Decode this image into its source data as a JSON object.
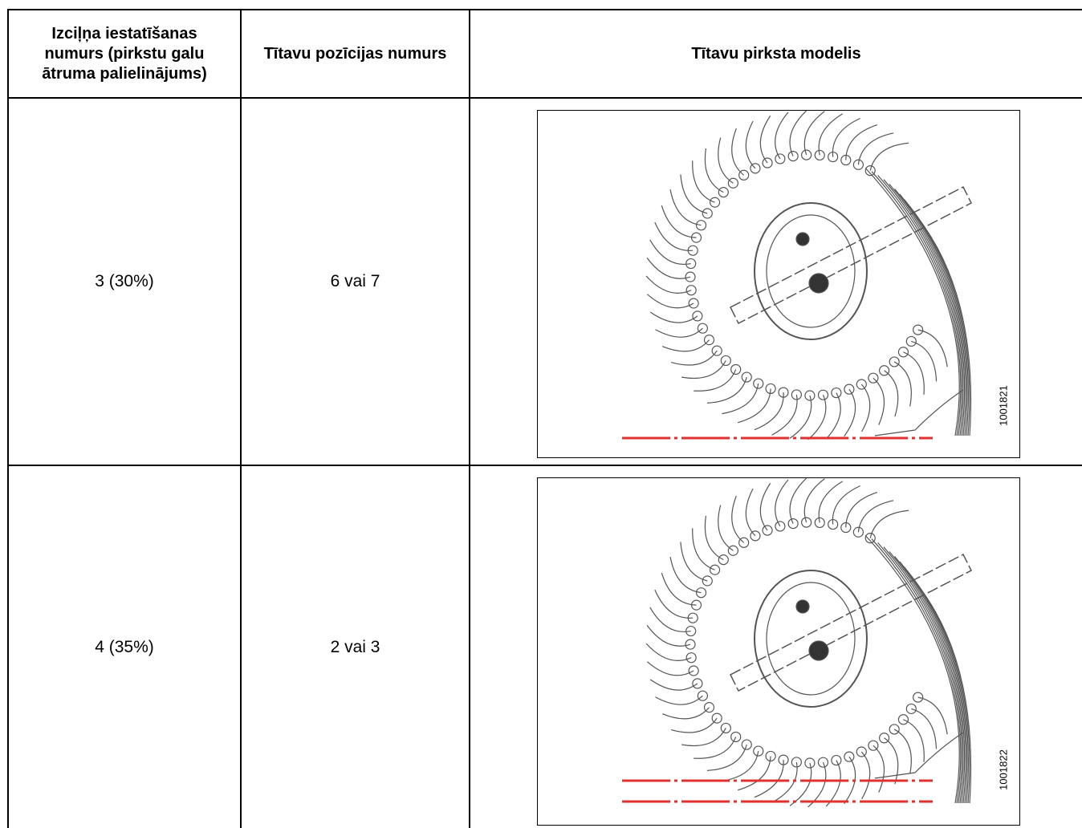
{
  "table": {
    "header": [
      "Izciļņa iestatīšanas numurs (pirkstu galu ātruma palielinājums)",
      "Tītavu pozīcijas numurs",
      "Tītavu pirksta modelis"
    ],
    "rows": [
      [
        "3 (30%)",
        "6 vai 7",
        {
          "figure_id": "1001821"
        }
      ],
      [
        "4 (35%)",
        "2 vai 3",
        {
          "figure_id": "1001822"
        }
      ]
    ]
  }
}
